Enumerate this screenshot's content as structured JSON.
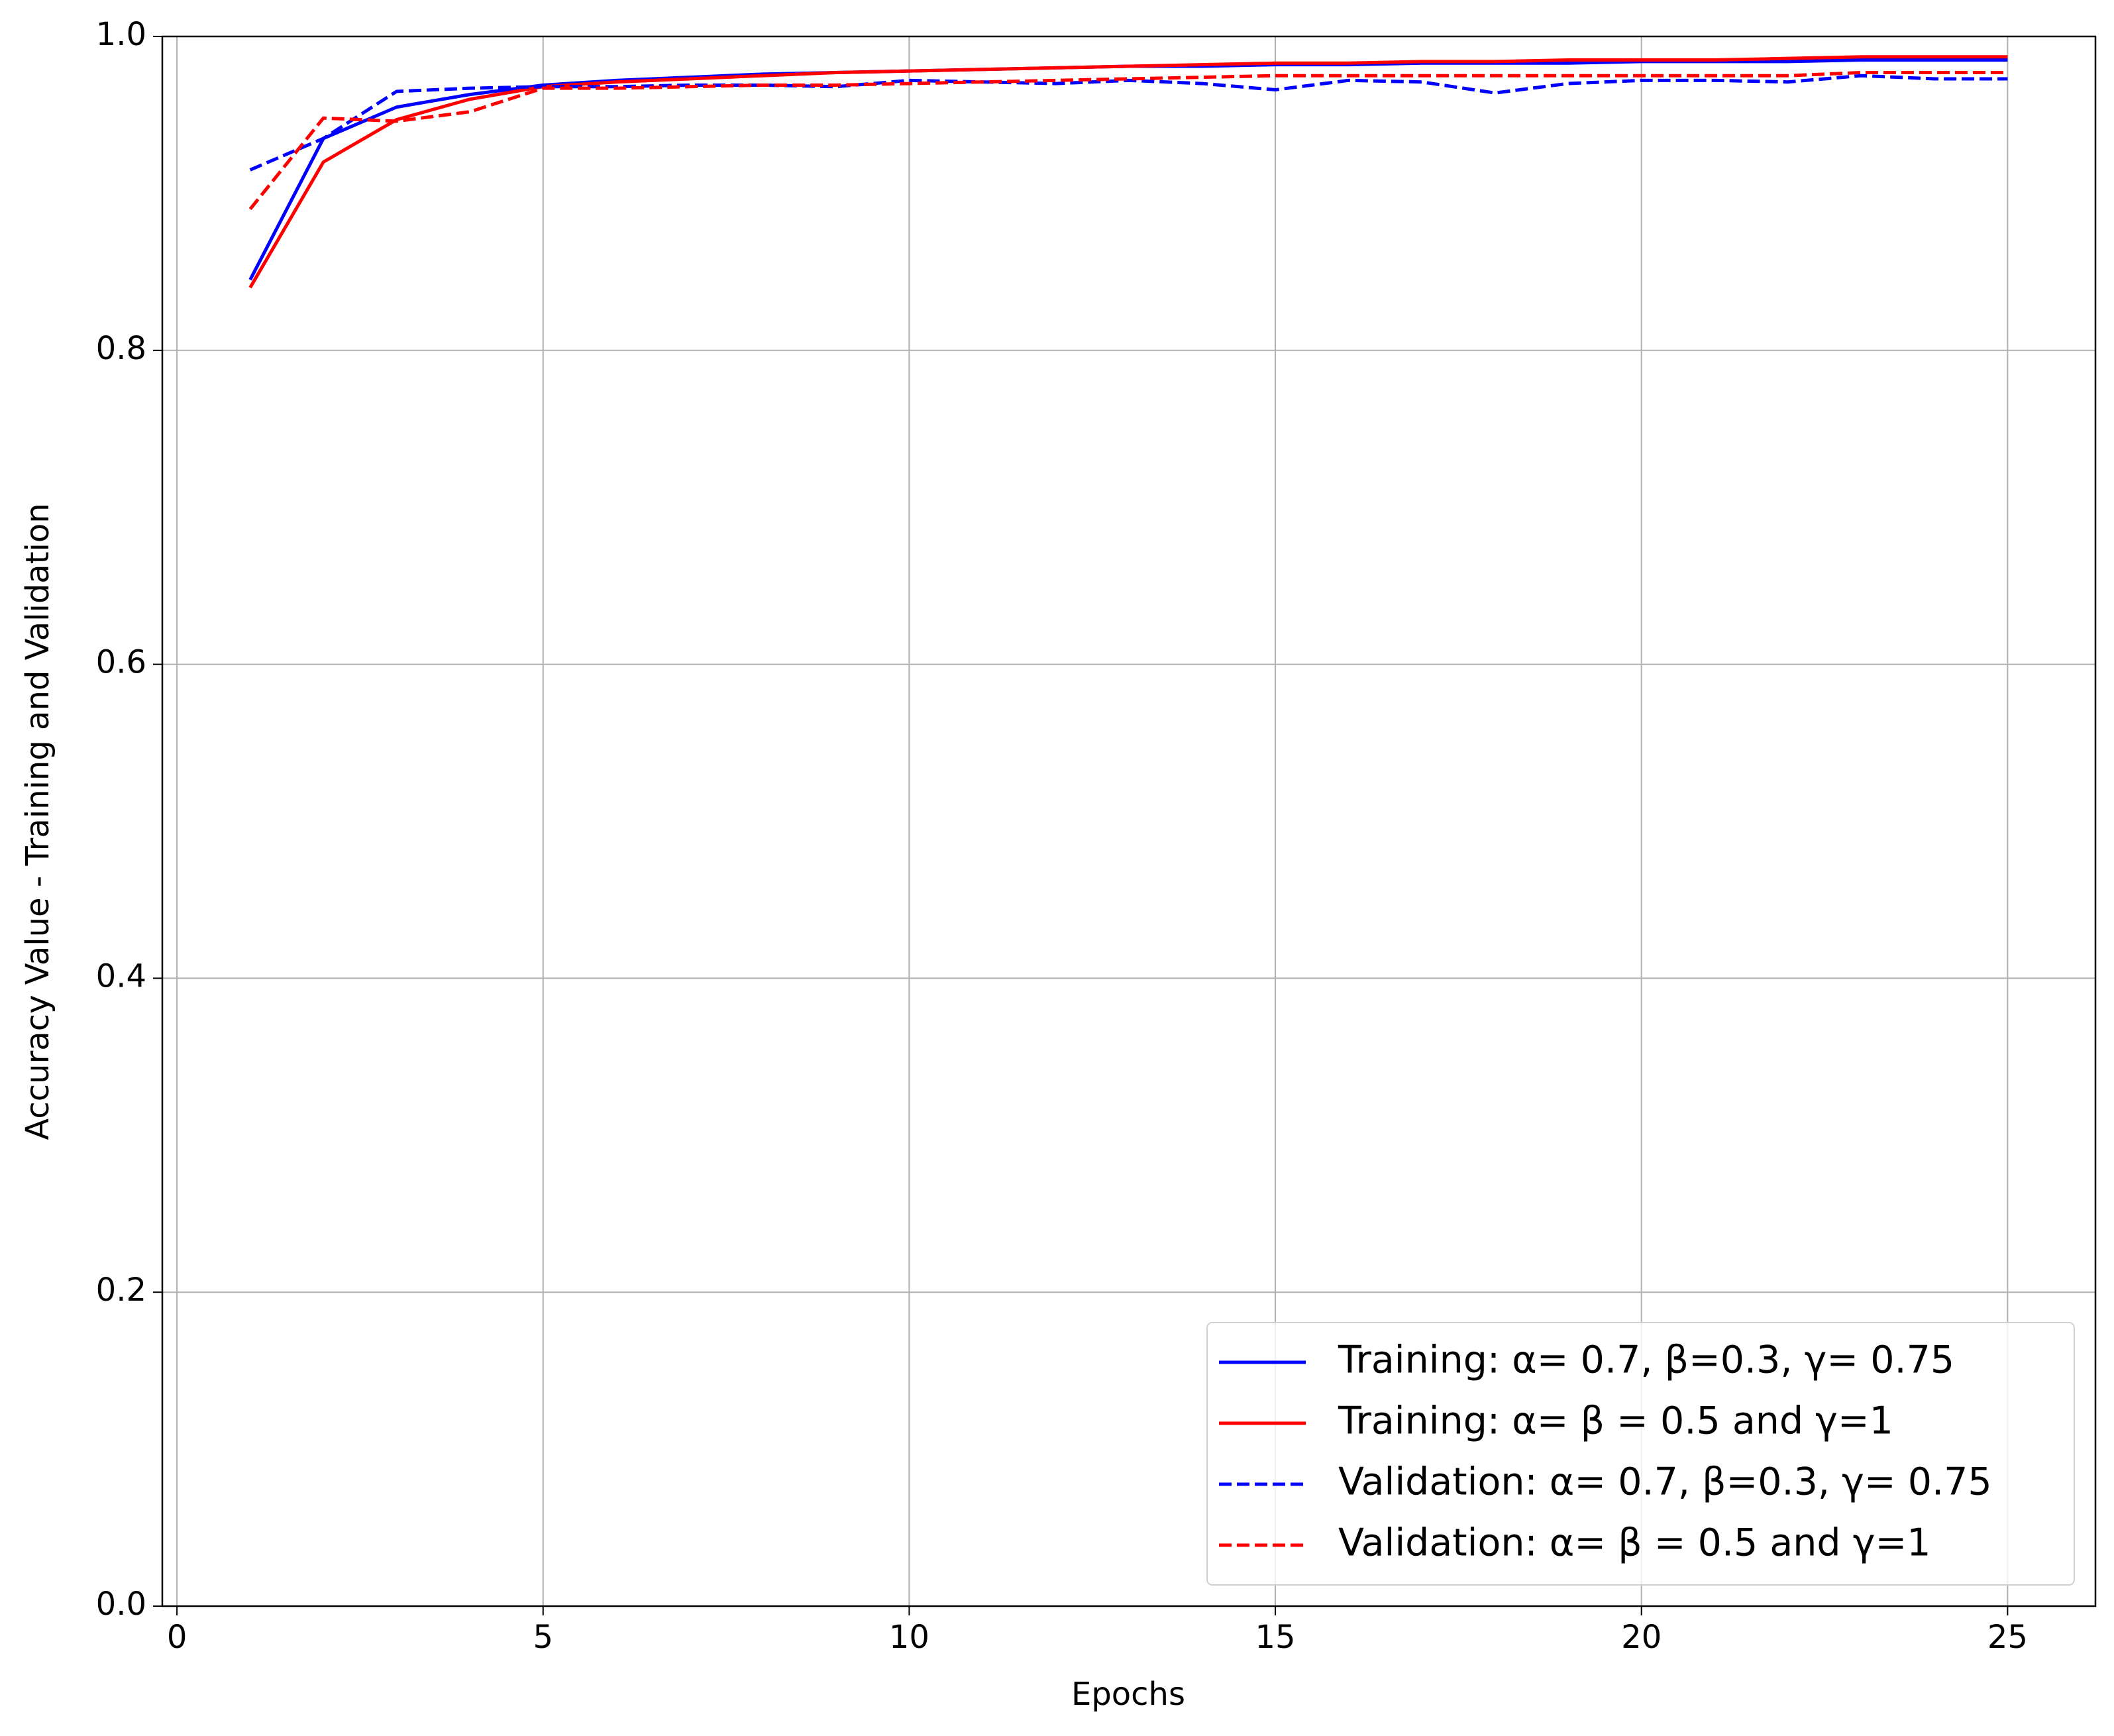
{
  "chart_data": {
    "type": "line",
    "xlabel": "Epochs",
    "ylabel": "Accuracy Value - Training and Validation",
    "x": [
      1,
      2,
      3,
      4,
      5,
      6,
      7,
      8,
      9,
      10,
      11,
      12,
      13,
      14,
      15,
      16,
      17,
      18,
      19,
      20,
      21,
      22,
      23,
      24,
      25
    ],
    "series": [
      {
        "name": "Training: α= 0.7, β=0.3, γ= 0.75",
        "color": "#0000ff",
        "linestyle": "solid",
        "values": [
          0.845,
          0.935,
          0.955,
          0.963,
          0.969,
          0.972,
          0.974,
          0.976,
          0.977,
          0.978,
          0.979,
          0.98,
          0.981,
          0.981,
          0.982,
          0.982,
          0.983,
          0.983,
          0.983,
          0.984,
          0.984,
          0.984,
          0.985,
          0.985,
          0.985
        ]
      },
      {
        "name": "Training: α= β = 0.5 and γ=1",
        "color": "#ff0000",
        "linestyle": "solid",
        "values": [
          0.84,
          0.92,
          0.947,
          0.96,
          0.968,
          0.971,
          0.973,
          0.975,
          0.977,
          0.978,
          0.979,
          0.98,
          0.981,
          0.982,
          0.983,
          0.983,
          0.984,
          0.984,
          0.985,
          0.985,
          0.985,
          0.986,
          0.987,
          0.987,
          0.987
        ]
      },
      {
        "name": "Validation: α= 0.7, β=0.3, γ= 0.75",
        "color": "#0000ff",
        "linestyle": "dashed",
        "values": [
          0.915,
          0.935,
          0.965,
          0.967,
          0.968,
          0.968,
          0.969,
          0.969,
          0.968,
          0.972,
          0.971,
          0.97,
          0.972,
          0.97,
          0.966,
          0.972,
          0.971,
          0.964,
          0.97,
          0.972,
          0.972,
          0.971,
          0.975,
          0.973,
          0.973
        ]
      },
      {
        "name": "Validation: α= β = 0.5 and γ=1",
        "color": "#ff0000",
        "linestyle": "dashed",
        "values": [
          0.89,
          0.948,
          0.946,
          0.952,
          0.967,
          0.967,
          0.968,
          0.969,
          0.969,
          0.97,
          0.971,
          0.972,
          0.973,
          0.974,
          0.975,
          0.975,
          0.975,
          0.975,
          0.975,
          0.975,
          0.975,
          0.975,
          0.977,
          0.977,
          0.977
        ]
      }
    ],
    "xlim": [
      -0.2,
      26.2
    ],
    "xticks": [
      0,
      5,
      10,
      15,
      20,
      25
    ],
    "ylim": [
      0,
      1
    ],
    "yticks": [
      {
        "value": 0,
        "label": "0.0"
      },
      0.2,
      0.4,
      0.6,
      0.8,
      {
        "value": 1,
        "label": "1.0"
      }
    ],
    "grid": true,
    "legend": "lower right"
  }
}
